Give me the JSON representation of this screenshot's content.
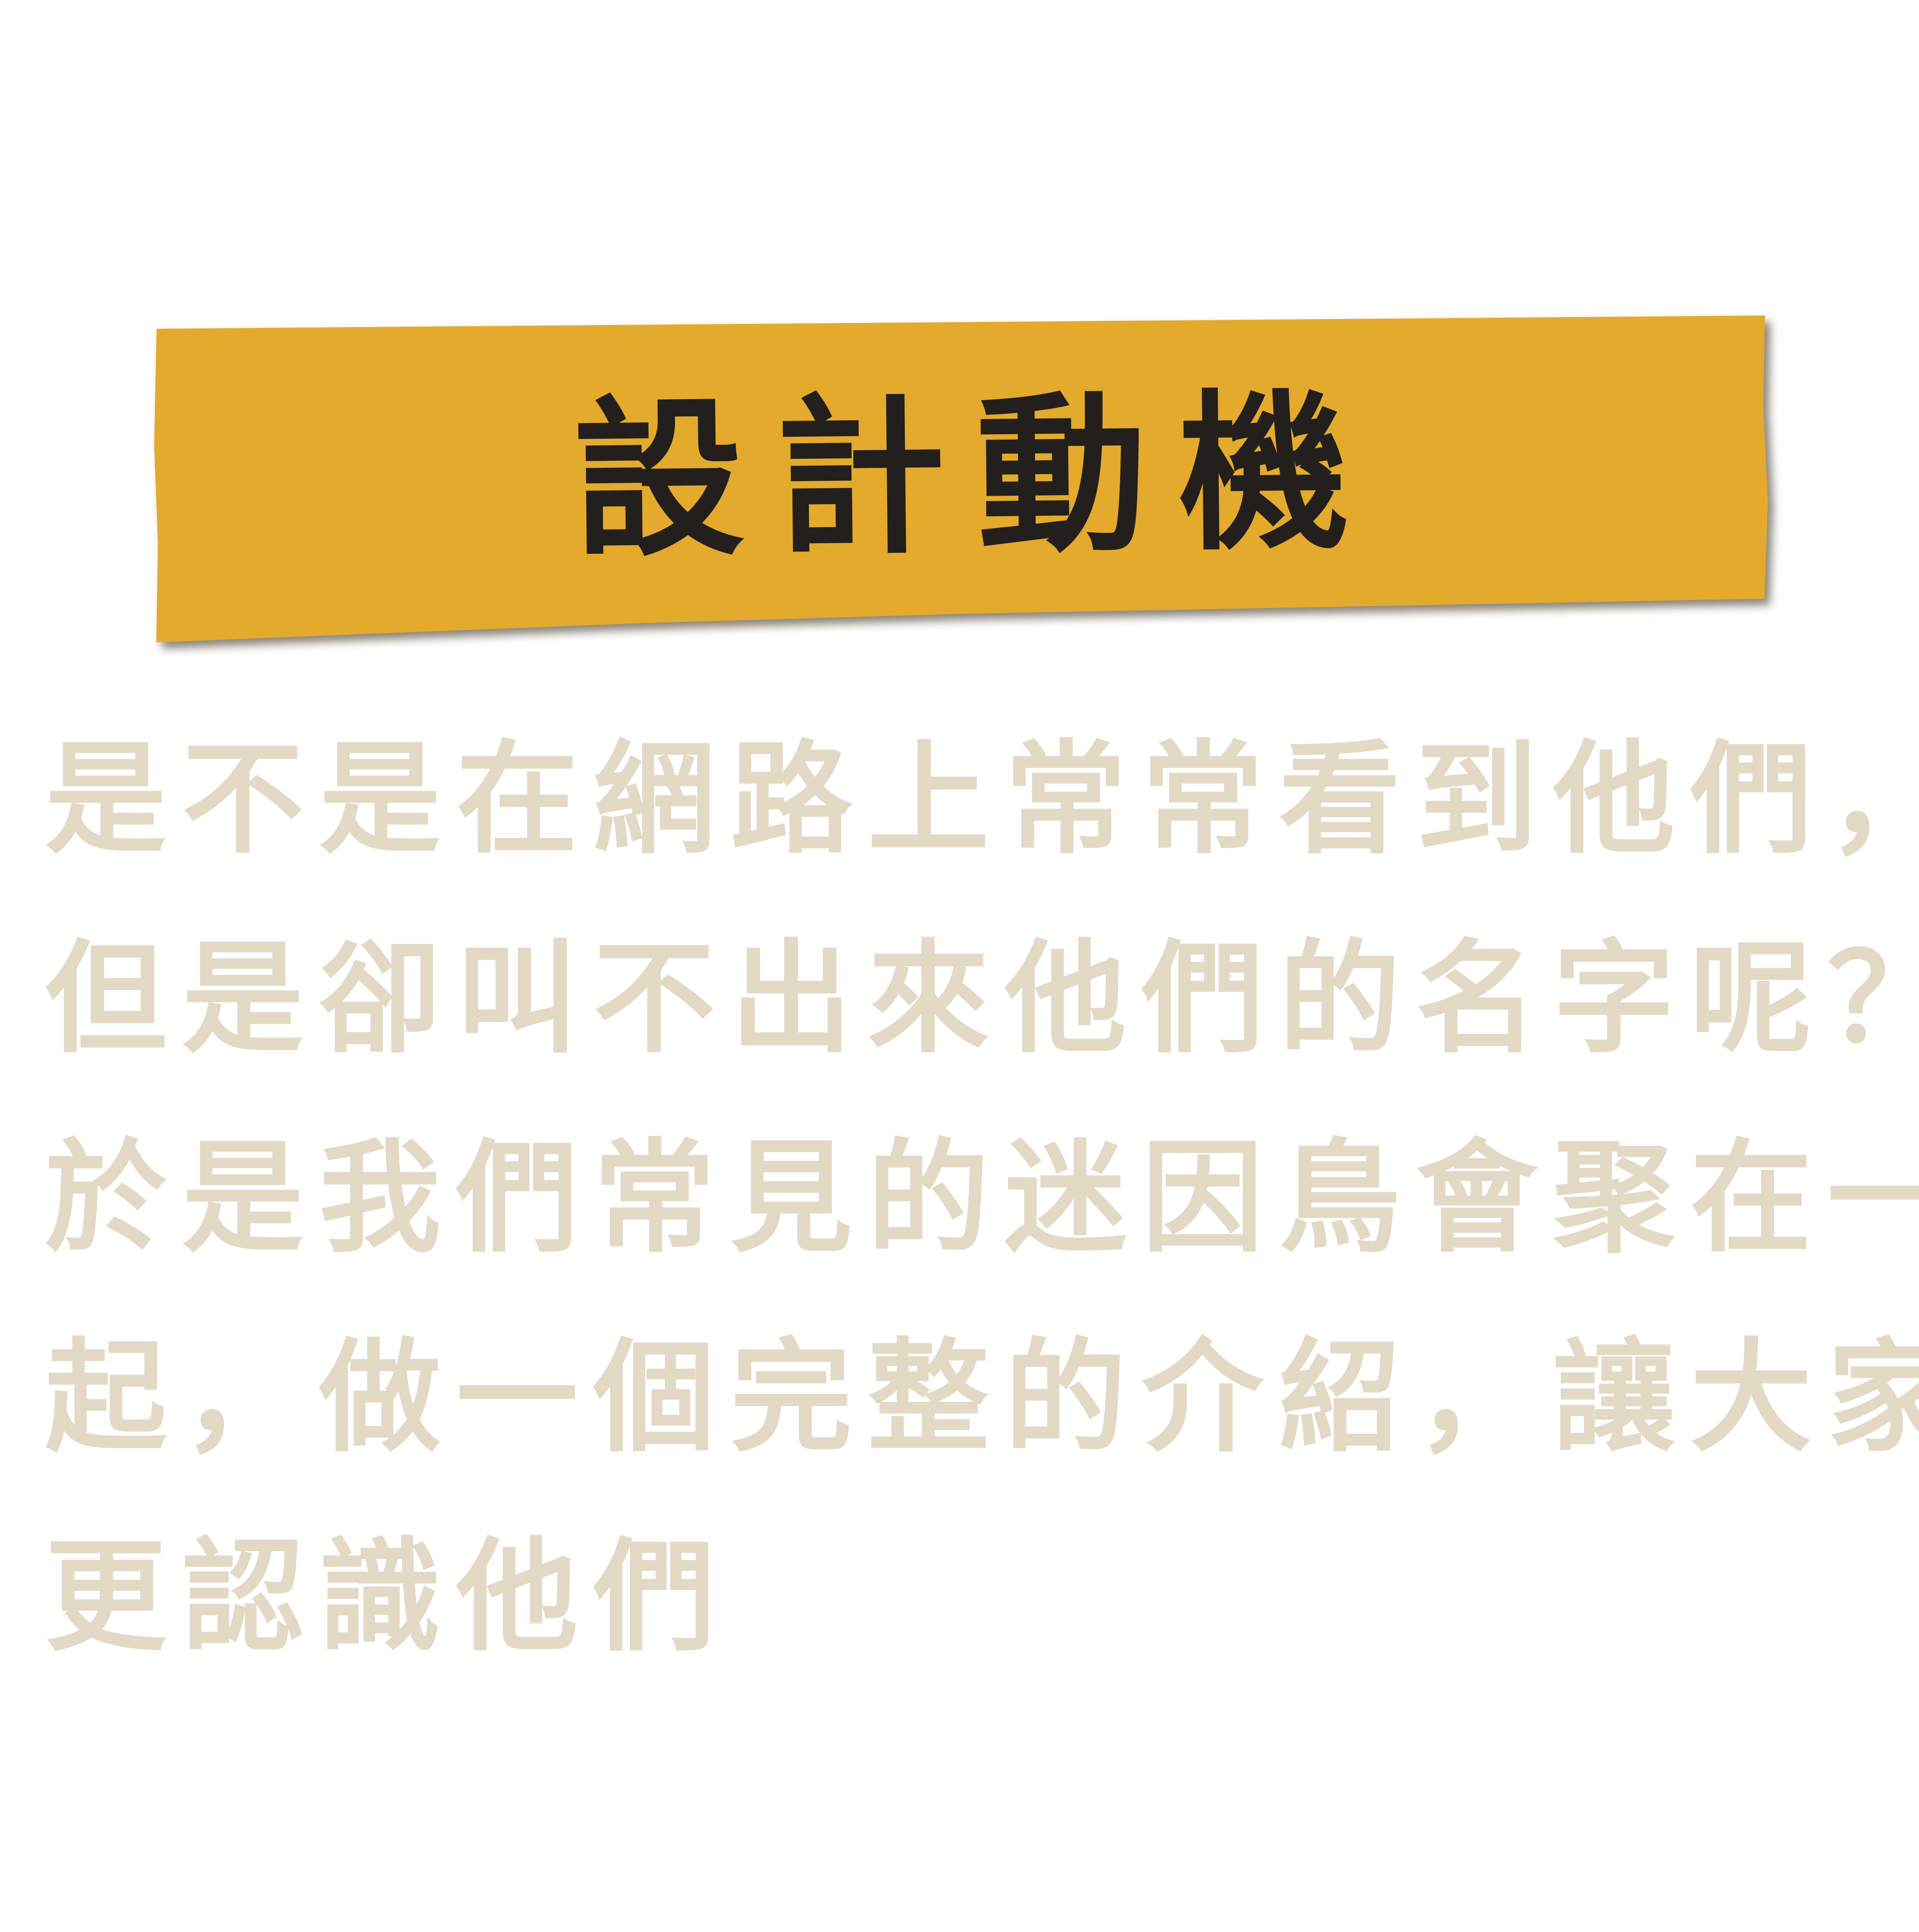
{
  "colors": {
    "background": "#ffffff",
    "banner_fill": "#e9ab2c",
    "banner_texture": "#c98d1c",
    "banner_text": "#231f1c",
    "body_text": "#e2dac5"
  },
  "banner": {
    "title": "設計動機"
  },
  "body": {
    "lines": [
      "是不是在網路上常常看到他們，",
      "但是卻叫不出來他們的名字呢？",
      "於是我們常見的迷因鳥會聚在一",
      "起，做一個完整的介紹，讓大家",
      "更認識他們"
    ]
  }
}
